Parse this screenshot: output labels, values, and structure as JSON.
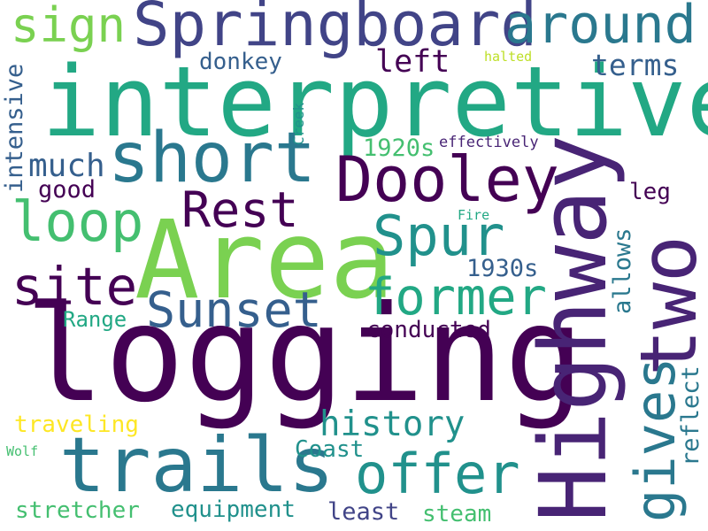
{
  "word_cloud": {
    "background": "#ffffff",
    "words": [
      {
        "text": "logging",
        "color": "#440154"
      },
      {
        "text": "Highway",
        "color": "#482475"
      },
      {
        "text": "interpretive",
        "color": "#22a884"
      },
      {
        "text": "Area",
        "color": "#7ad151"
      },
      {
        "text": "Springboard",
        "color": "#414487"
      },
      {
        "text": "short",
        "color": "#2a788e"
      },
      {
        "text": "two",
        "color": "#482475"
      },
      {
        "text": "trails",
        "color": "#2a788e"
      },
      {
        "text": "Dooley",
        "color": "#440154"
      },
      {
        "text": "around",
        "color": "#2a788e"
      },
      {
        "text": "Spur",
        "color": "#21918c"
      },
      {
        "text": "loop",
        "color": "#44bf70"
      },
      {
        "text": "offer",
        "color": "#21918c"
      },
      {
        "text": "former",
        "color": "#22a884"
      },
      {
        "text": "site",
        "color": "#440154"
      },
      {
        "text": "Sunset",
        "color": "#355f8d"
      },
      {
        "text": "Rest",
        "color": "#440154"
      },
      {
        "text": "sign",
        "color": "#7ad151"
      },
      {
        "text": "gives",
        "color": "#2a788e"
      },
      {
        "text": "history",
        "color": "#21918c"
      },
      {
        "text": "much",
        "color": "#355f8d"
      },
      {
        "text": "left",
        "color": "#440154"
      },
      {
        "text": "terms",
        "color": "#355f8d"
      },
      {
        "text": "1920s",
        "color": "#44bf70"
      },
      {
        "text": "1930s",
        "color": "#355f8d"
      },
      {
        "text": "donkey",
        "color": "#355f8d"
      },
      {
        "text": "intensive",
        "color": "#355f8d"
      },
      {
        "text": "good",
        "color": "#440154"
      },
      {
        "text": "leg",
        "color": "#440154"
      },
      {
        "text": "allows",
        "color": "#2a788e"
      },
      {
        "text": "reflect",
        "color": "#2a788e"
      },
      {
        "text": "conducted",
        "color": "#440154"
      },
      {
        "text": "Range",
        "color": "#22a884"
      },
      {
        "text": "traveling",
        "color": "#fde725"
      },
      {
        "text": "Coast",
        "color": "#21918c"
      },
      {
        "text": "equipment",
        "color": "#21918c"
      },
      {
        "text": "stretcher",
        "color": "#44bf70"
      },
      {
        "text": "least",
        "color": "#414487"
      },
      {
        "text": "steam",
        "color": "#44bf70"
      },
      {
        "text": "effectively",
        "color": "#482475"
      },
      {
        "text": "Creek",
        "color": "#21918c"
      },
      {
        "text": "halted",
        "color": "#bddf26"
      },
      {
        "text": "Fire",
        "color": "#22a884"
      },
      {
        "text": "Wolf",
        "color": "#44bf70"
      }
    ]
  }
}
